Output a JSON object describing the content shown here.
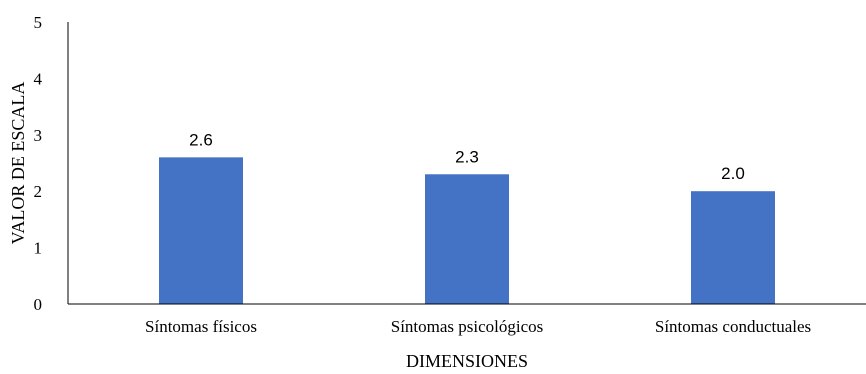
{
  "chart_data": {
    "type": "bar",
    "categories": [
      "Síntomas físicos",
      "Síntomas psicológicos",
      "Síntomas conductuales"
    ],
    "values": [
      2.6,
      2.3,
      2.0
    ],
    "data_labels": [
      "2.6",
      "2.3",
      "2.0"
    ],
    "xlabel": "DIMENSIONES",
    "ylabel": "VALOR DE ESCALA",
    "ylim": [
      0,
      5
    ],
    "yticks": [
      0,
      1,
      2,
      3,
      4,
      5
    ],
    "grid": false,
    "legend": "none",
    "bar_color": "#4472C4"
  }
}
